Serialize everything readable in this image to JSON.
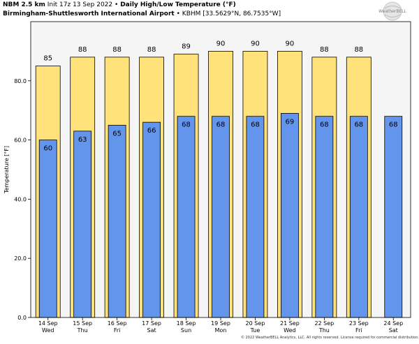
{
  "header": {
    "model": "NBM 2.5 km",
    "init": "Init 17z 13 Sep 2022",
    "product": "Daily High/Low Temperature (°F)",
    "station": "Birmingham-Shuttlesworth International Airport",
    "station_info": "KBHM [33.5629°N, 86.7535°W]"
  },
  "logo_text": "WeatherBELL",
  "copyright": "© 2022 WeatherBELL Analytics, LLC. All rights reserved. License required for commercial distribution.",
  "colors": {
    "high": "#FFE27A",
    "low": "#6495ED",
    "edge": "#000000",
    "plot_bg": "#F5F5F5"
  },
  "chart_data": {
    "type": "bar",
    "categories": [
      "14 Sep",
      "15 Sep",
      "16 Sep",
      "17 Sep",
      "18 Sep",
      "19 Sep",
      "20 Sep",
      "21 Sep",
      "22 Sep",
      "23 Sep",
      "24 Sep"
    ],
    "weekdays": [
      "Wed",
      "Thu",
      "Fri",
      "Sat",
      "Sun",
      "Mon",
      "Tue",
      "Wed",
      "Thu",
      "Fri",
      "Sat"
    ],
    "series": [
      {
        "values": [
          85,
          88,
          88,
          88,
          89,
          90,
          90,
          90,
          88,
          88,
          null
        ],
        "labels": [
          "85",
          "88",
          "88",
          "88",
          "89",
          "90",
          "90",
          "90",
          "88",
          "88",
          ""
        ],
        "color": "#FFE27A"
      },
      {
        "values": [
          60,
          63,
          65,
          66,
          68,
          68,
          68,
          69,
          68,
          68,
          68
        ],
        "labels": [
          "60",
          "63",
          "65",
          "66",
          "68",
          "68",
          "68",
          "69",
          "68",
          "68",
          "68"
        ],
        "color": "#6495ED"
      }
    ],
    "ylabel": "Temperature [°F]",
    "ylim": [
      0,
      100
    ],
    "yticks": [
      0,
      20,
      40,
      60,
      80
    ],
    "ytick_labels": [
      "0.0",
      "20.0",
      "40.0",
      "60.0",
      "80.0"
    ],
    "grid": false
  }
}
